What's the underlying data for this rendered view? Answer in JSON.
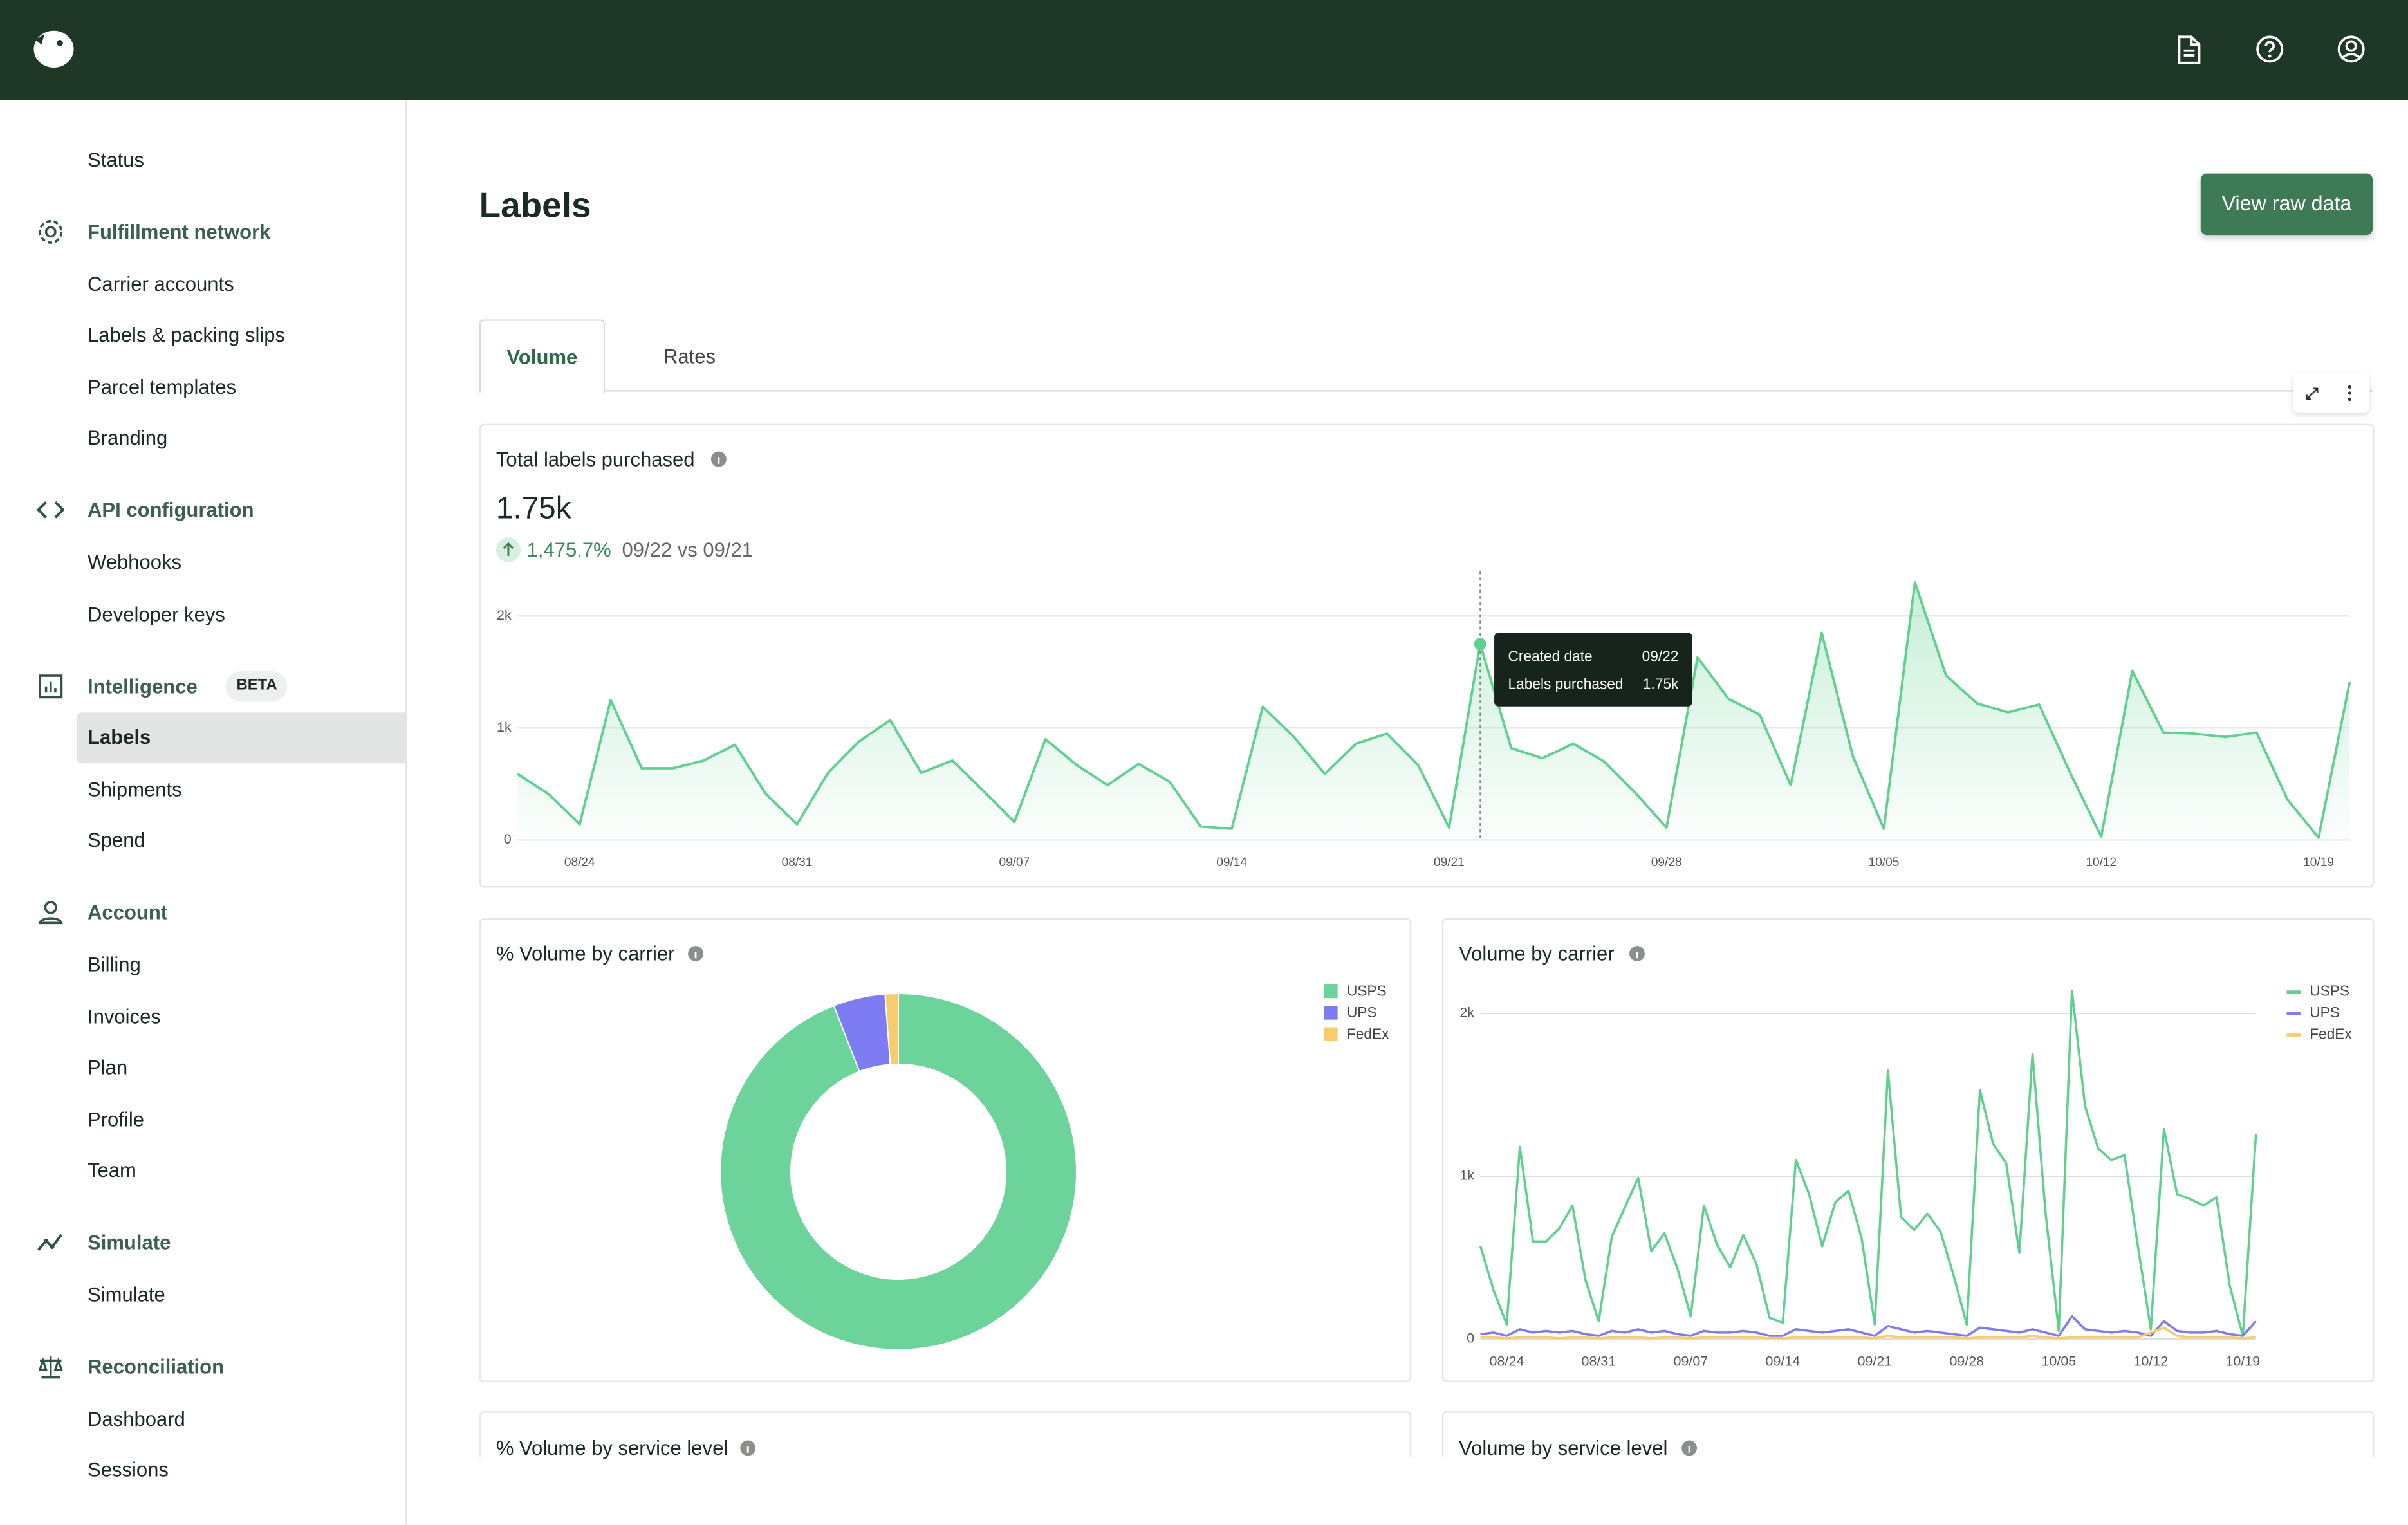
{
  "sidebar": {
    "items": [
      "Status"
    ],
    "sections": [
      {
        "title": "Fulfillment network",
        "items": [
          "Carrier accounts",
          "Labels & packing slips",
          "Parcel templates",
          "Branding"
        ]
      },
      {
        "title": "API configuration",
        "items": [
          "Webhooks",
          "Developer keys"
        ]
      },
      {
        "title": "Intelligence",
        "badge": "BETA",
        "items": [
          "Labels",
          "Shipments",
          "Spend"
        ]
      },
      {
        "title": "Account",
        "items": [
          "Billing",
          "Invoices",
          "Plan",
          "Profile",
          "Team"
        ]
      },
      {
        "title": "Simulate",
        "items": [
          "Simulate"
        ]
      },
      {
        "title": "Reconciliation",
        "items": [
          "Dashboard",
          "Sessions"
        ]
      }
    ]
  },
  "page": {
    "title": "Labels",
    "button": "View raw data",
    "tabs": [
      "Volume",
      "Rates"
    ]
  },
  "cards": [
    "% Volume by service level",
    "Volume by service level"
  ],
  "chart_data": [
    {
      "type": "area",
      "title": "Total labels purchased",
      "headline": "1.75k",
      "change": "1,475.7%",
      "comparison": "09/22 vs 09/21",
      "categories": [
        null,
        null,
        "08/24",
        null,
        null,
        null,
        null,
        null,
        null,
        "08/31",
        null,
        null,
        null,
        null,
        null,
        null,
        "09/07",
        null,
        null,
        null,
        null,
        null,
        null,
        "09/14",
        null,
        null,
        null,
        null,
        null,
        null,
        "09/21",
        null,
        null,
        null,
        null,
        null,
        null,
        "09/28",
        null,
        null,
        null,
        null,
        null,
        null,
        "10/05",
        null,
        null,
        null,
        null,
        null,
        null,
        "10/12",
        null,
        null,
        null,
        null,
        null,
        null,
        "10/19",
        null
      ],
      "values": [
        590,
        410,
        140,
        1250,
        640,
        640,
        710,
        850,
        410,
        140,
        600,
        880,
        1070,
        600,
        710,
        440,
        160,
        900,
        670,
        490,
        680,
        520,
        120,
        100,
        1190,
        920,
        590,
        860,
        950,
        670,
        110,
        1750,
        820,
        730,
        860,
        700,
        420,
        110,
        1630,
        1260,
        1120,
        490,
        1850,
        750,
        100,
        2300,
        1470,
        1220,
        1140,
        1210,
        600,
        30,
        1510,
        960,
        950,
        920,
        960,
        360,
        20,
        1410
      ],
      "color": "#5fd08f",
      "ylim": [
        0,
        2400
      ],
      "yticks": [
        0,
        {
          "value": 1000,
          "label": "1k"
        },
        {
          "value": 2000,
          "label": "2k"
        }
      ],
      "grid": true,
      "tooltip": {
        "date_label": "Created date",
        "date": "09/22",
        "value_label": "Labels purchased",
        "value": "1.75k"
      }
    },
    {
      "type": "donut",
      "title": "% Volume by carrier",
      "categories": [
        "USPS",
        "UPS",
        "FedEx"
      ],
      "values": [
        94.1,
        4.7,
        1.2
      ],
      "colors": [
        "#6cd49a",
        "#7d7cf2",
        "#f5cd6a"
      ],
      "legend": "top-right"
    },
    {
      "type": "line",
      "title": "Volume by carrier",
      "categories": [
        null,
        null,
        "08/24",
        null,
        null,
        null,
        null,
        null,
        null,
        "08/31",
        null,
        null,
        null,
        null,
        null,
        null,
        "09/07",
        null,
        null,
        null,
        null,
        null,
        null,
        "09/14",
        null,
        null,
        null,
        null,
        null,
        null,
        "09/21",
        null,
        null,
        null,
        null,
        null,
        null,
        "09/28",
        null,
        null,
        null,
        null,
        null,
        null,
        "10/05",
        null,
        null,
        null,
        null,
        null,
        null,
        "10/12",
        null,
        null,
        null,
        null,
        null,
        null,
        "10/19",
        null
      ],
      "series": [
        {
          "name": "USPS",
          "color": "#5fd08f",
          "values": [
            570,
            300,
            90,
            1180,
            600,
            600,
            680,
            820,
            360,
            110,
            630,
            810,
            990,
            540,
            650,
            430,
            140,
            820,
            580,
            440,
            640,
            460,
            130,
            100,
            1100,
            890,
            570,
            840,
            910,
            620,
            90,
            1650,
            750,
            670,
            770,
            660,
            390,
            90,
            1530,
            1200,
            1080,
            530,
            1750,
            770,
            50,
            2140,
            1430,
            1170,
            1100,
            1130,
            580,
            60,
            1290,
            890,
            860,
            820,
            870,
            330,
            20,
            1260
          ]
        },
        {
          "name": "UPS",
          "color": "#7d7cf2",
          "values": [
            30,
            40,
            20,
            60,
            40,
            50,
            40,
            50,
            30,
            20,
            50,
            40,
            60,
            40,
            50,
            30,
            20,
            50,
            40,
            40,
            50,
            40,
            20,
            20,
            60,
            50,
            40,
            50,
            60,
            40,
            20,
            80,
            60,
            40,
            50,
            40,
            30,
            20,
            70,
            60,
            50,
            40,
            60,
            40,
            20,
            140,
            60,
            50,
            40,
            50,
            40,
            20,
            110,
            50,
            40,
            40,
            50,
            30,
            20,
            110
          ]
        },
        {
          "name": "FedEx",
          "color": "#f5cd6a",
          "values": [
            10,
            10,
            5,
            10,
            10,
            10,
            5,
            10,
            10,
            5,
            10,
            10,
            10,
            5,
            10,
            10,
            5,
            10,
            10,
            10,
            10,
            10,
            5,
            5,
            10,
            10,
            10,
            10,
            10,
            10,
            5,
            20,
            10,
            10,
            10,
            10,
            10,
            5,
            10,
            10,
            10,
            10,
            20,
            10,
            5,
            10,
            10,
            10,
            10,
            10,
            10,
            40,
            70,
            20,
            10,
            10,
            10,
            10,
            5,
            10
          ]
        }
      ],
      "ylim": [
        0,
        2200
      ],
      "yticks": [
        0,
        {
          "value": 1000,
          "label": "1k"
        },
        {
          "value": 2000,
          "label": "2k"
        }
      ],
      "grid": true,
      "legend": "top-right"
    }
  ]
}
